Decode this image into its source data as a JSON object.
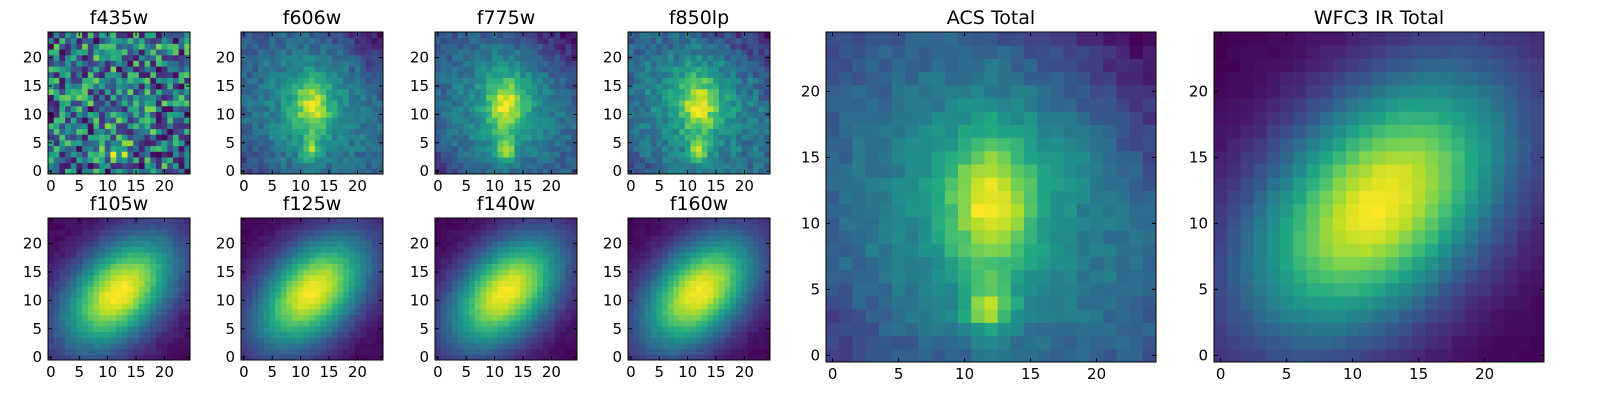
{
  "chart_data": [
    {
      "type": "heatmap",
      "title": "f435w",
      "map": "f435w",
      "xticks": [
        0,
        5,
        10,
        15,
        20
      ],
      "yticks": [
        0,
        5,
        10,
        15,
        20
      ],
      "xlim": [
        0,
        24
      ],
      "ylim": [
        0,
        24
      ],
      "grid": false,
      "colormap": "viridis"
    },
    {
      "type": "heatmap",
      "title": "f606w",
      "map": "f606w",
      "xticks": [
        0,
        5,
        10,
        15,
        20
      ],
      "yticks": [
        0,
        5,
        10,
        15,
        20
      ],
      "xlim": [
        0,
        24
      ],
      "ylim": [
        0,
        24
      ],
      "grid": false,
      "colormap": "viridis"
    },
    {
      "type": "heatmap",
      "title": "f775w",
      "map": "f775w",
      "xticks": [
        0,
        5,
        10,
        15,
        20
      ],
      "yticks": [
        0,
        5,
        10,
        15,
        20
      ],
      "xlim": [
        0,
        24
      ],
      "ylim": [
        0,
        24
      ],
      "grid": false,
      "colormap": "viridis"
    },
    {
      "type": "heatmap",
      "title": "f850lp",
      "map": "f850lp",
      "xticks": [
        0,
        5,
        10,
        15,
        20
      ],
      "yticks": [
        0,
        5,
        10,
        15,
        20
      ],
      "xlim": [
        0,
        24
      ],
      "ylim": [
        0,
        24
      ],
      "grid": false,
      "colormap": "viridis"
    },
    {
      "type": "heatmap",
      "title": "f105w",
      "map": "f105w",
      "xticks": [
        0,
        5,
        10,
        15,
        20
      ],
      "yticks": [
        0,
        5,
        10,
        15,
        20
      ],
      "xlim": [
        0,
        24
      ],
      "ylim": [
        0,
        24
      ],
      "grid": false,
      "colormap": "viridis"
    },
    {
      "type": "heatmap",
      "title": "f125w",
      "map": "f125w",
      "xticks": [
        0,
        5,
        10,
        15,
        20
      ],
      "yticks": [
        0,
        5,
        10,
        15,
        20
      ],
      "xlim": [
        0,
        24
      ],
      "ylim": [
        0,
        24
      ],
      "grid": false,
      "colormap": "viridis"
    },
    {
      "type": "heatmap",
      "title": "f140w",
      "map": "f140w",
      "xticks": [
        0,
        5,
        10,
        15,
        20
      ],
      "yticks": [
        0,
        5,
        10,
        15,
        20
      ],
      "xlim": [
        0,
        24
      ],
      "ylim": [
        0,
        24
      ],
      "grid": false,
      "colormap": "viridis"
    },
    {
      "type": "heatmap",
      "title": "f160w",
      "map": "f160w",
      "xticks": [
        0,
        5,
        10,
        15,
        20
      ],
      "yticks": [
        0,
        5,
        10,
        15,
        20
      ],
      "xlim": [
        0,
        24
      ],
      "ylim": [
        0,
        24
      ],
      "grid": false,
      "colormap": "viridis"
    },
    {
      "type": "heatmap",
      "title": "ACS Total",
      "map": "acs_total",
      "xticks": [
        0,
        5,
        10,
        15,
        20
      ],
      "yticks": [
        0,
        5,
        10,
        15,
        20
      ],
      "xlim": [
        0,
        24
      ],
      "ylim": [
        0,
        24
      ],
      "grid": false,
      "colormap": "viridis"
    },
    {
      "type": "heatmap",
      "title": "WFC3 IR Total",
      "map": "wfc3_total",
      "xticks": [
        0,
        5,
        10,
        15,
        20
      ],
      "yticks": [
        0,
        5,
        10,
        15,
        20
      ],
      "xlim": [
        0,
        24
      ],
      "ylim": [
        0,
        24
      ],
      "grid": false,
      "colormap": "viridis"
    }
  ]
}
